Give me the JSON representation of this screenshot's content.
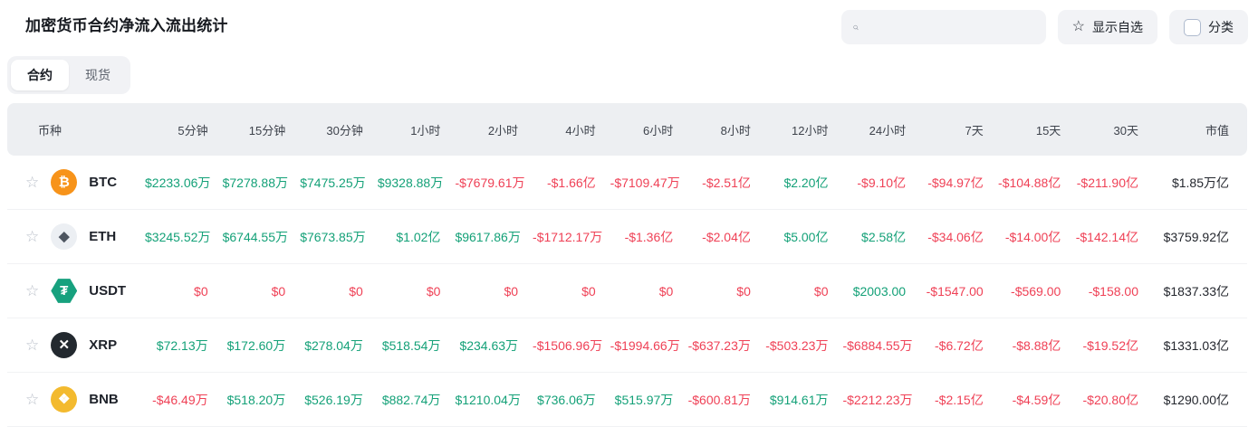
{
  "page": {
    "title": "加密货币合约净流入流出统计"
  },
  "toolbar": {
    "search_value": "",
    "show_favorites_label": "显示自选",
    "category_label": "分类"
  },
  "tabs": [
    {
      "label": "合约",
      "active": true
    },
    {
      "label": "现货",
      "active": false
    }
  ],
  "colors": {
    "positive": "#14a178",
    "negative": "#ef4156",
    "market_cap": "#24272e"
  },
  "table": {
    "columns": [
      "币种",
      "5分钟",
      "15分钟",
      "30分钟",
      "1小时",
      "2小时",
      "4小时",
      "6小时",
      "8小时",
      "12小时",
      "24小时",
      "7天",
      "15天",
      "30天",
      "市值"
    ],
    "rows": [
      {
        "symbol": "BTC",
        "icon": {
          "name": "btc-icon",
          "glyph": "₿",
          "bg": "#f7931a",
          "fg": "#ffffff",
          "shape": "circle"
        },
        "values": [
          {
            "text": "$2233.06万",
            "trend": "pos"
          },
          {
            "text": "$7278.88万",
            "trend": "pos"
          },
          {
            "text": "$7475.25万",
            "trend": "pos"
          },
          {
            "text": "$9328.88万",
            "trend": "pos"
          },
          {
            "text": "-$7679.61万",
            "trend": "neg"
          },
          {
            "text": "-$1.66亿",
            "trend": "neg"
          },
          {
            "text": "-$7109.47万",
            "trend": "neg"
          },
          {
            "text": "-$2.51亿",
            "trend": "neg"
          },
          {
            "text": "$2.20亿",
            "trend": "pos"
          },
          {
            "text": "-$9.10亿",
            "trend": "neg"
          },
          {
            "text": "-$94.97亿",
            "trend": "neg"
          },
          {
            "text": "-$104.88亿",
            "trend": "neg"
          },
          {
            "text": "-$211.90亿",
            "trend": "neg"
          }
        ],
        "market_cap": "$1.85万亿"
      },
      {
        "symbol": "ETH",
        "icon": {
          "name": "eth-icon",
          "glyph": "◆",
          "bg": "#eceff3",
          "fg": "#4d5560",
          "shape": "circle"
        },
        "values": [
          {
            "text": "$3245.52万",
            "trend": "pos"
          },
          {
            "text": "$6744.55万",
            "trend": "pos"
          },
          {
            "text": "$7673.85万",
            "trend": "pos"
          },
          {
            "text": "$1.02亿",
            "trend": "pos"
          },
          {
            "text": "$9617.86万",
            "trend": "pos"
          },
          {
            "text": "-$1712.17万",
            "trend": "neg"
          },
          {
            "text": "-$1.36亿",
            "trend": "neg"
          },
          {
            "text": "-$2.04亿",
            "trend": "neg"
          },
          {
            "text": "$5.00亿",
            "trend": "pos"
          },
          {
            "text": "$2.58亿",
            "trend": "pos"
          },
          {
            "text": "-$34.06亿",
            "trend": "neg"
          },
          {
            "text": "-$14.00亿",
            "trend": "neg"
          },
          {
            "text": "-$142.14亿",
            "trend": "neg"
          }
        ],
        "market_cap": "$3759.92亿"
      },
      {
        "symbol": "USDT",
        "icon": {
          "name": "usdt-icon",
          "glyph": "₮",
          "bg": "#17a17e",
          "fg": "#ffffff",
          "shape": "hexagon"
        },
        "values": [
          {
            "text": "$0",
            "trend": "neg"
          },
          {
            "text": "$0",
            "trend": "neg"
          },
          {
            "text": "$0",
            "trend": "neg"
          },
          {
            "text": "$0",
            "trend": "neg"
          },
          {
            "text": "$0",
            "trend": "neg"
          },
          {
            "text": "$0",
            "trend": "neg"
          },
          {
            "text": "$0",
            "trend": "neg"
          },
          {
            "text": "$0",
            "trend": "neg"
          },
          {
            "text": "$0",
            "trend": "neg"
          },
          {
            "text": "$2003.00",
            "trend": "pos"
          },
          {
            "text": "-$1547.00",
            "trend": "neg"
          },
          {
            "text": "-$569.00",
            "trend": "neg"
          },
          {
            "text": "-$158.00",
            "trend": "neg"
          }
        ],
        "market_cap": "$1837.33亿"
      },
      {
        "symbol": "XRP",
        "icon": {
          "name": "xrp-icon",
          "glyph": "✕",
          "bg": "#23292f",
          "fg": "#ffffff",
          "shape": "circle"
        },
        "values": [
          {
            "text": "$72.13万",
            "trend": "pos"
          },
          {
            "text": "$172.60万",
            "trend": "pos"
          },
          {
            "text": "$278.04万",
            "trend": "pos"
          },
          {
            "text": "$518.54万",
            "trend": "pos"
          },
          {
            "text": "$234.63万",
            "trend": "pos"
          },
          {
            "text": "-$1506.96万",
            "trend": "neg"
          },
          {
            "text": "-$1994.66万",
            "trend": "neg"
          },
          {
            "text": "-$637.23万",
            "trend": "neg"
          },
          {
            "text": "-$503.23万",
            "trend": "neg"
          },
          {
            "text": "-$6884.55万",
            "trend": "neg"
          },
          {
            "text": "-$6.72亿",
            "trend": "neg"
          },
          {
            "text": "-$8.88亿",
            "trend": "neg"
          },
          {
            "text": "-$19.52亿",
            "trend": "neg"
          }
        ],
        "market_cap": "$1331.03亿"
      },
      {
        "symbol": "BNB",
        "icon": {
          "name": "bnb-icon",
          "glyph": "❖",
          "bg": "#f3ba2f",
          "fg": "#ffffff",
          "shape": "circle"
        },
        "values": [
          {
            "text": "-$46.49万",
            "trend": "neg"
          },
          {
            "text": "$518.20万",
            "trend": "pos"
          },
          {
            "text": "$526.19万",
            "trend": "pos"
          },
          {
            "text": "$882.74万",
            "trend": "pos"
          },
          {
            "text": "$1210.04万",
            "trend": "pos"
          },
          {
            "text": "$736.06万",
            "trend": "pos"
          },
          {
            "text": "$515.97万",
            "trend": "pos"
          },
          {
            "text": "-$600.81万",
            "trend": "neg"
          },
          {
            "text": "$914.61万",
            "trend": "pos"
          },
          {
            "text": "-$2212.23万",
            "trend": "neg"
          },
          {
            "text": "-$2.15亿",
            "trend": "neg"
          },
          {
            "text": "-$4.59亿",
            "trend": "neg"
          },
          {
            "text": "-$20.80亿",
            "trend": "neg"
          }
        ],
        "market_cap": "$1290.00亿"
      }
    ]
  }
}
